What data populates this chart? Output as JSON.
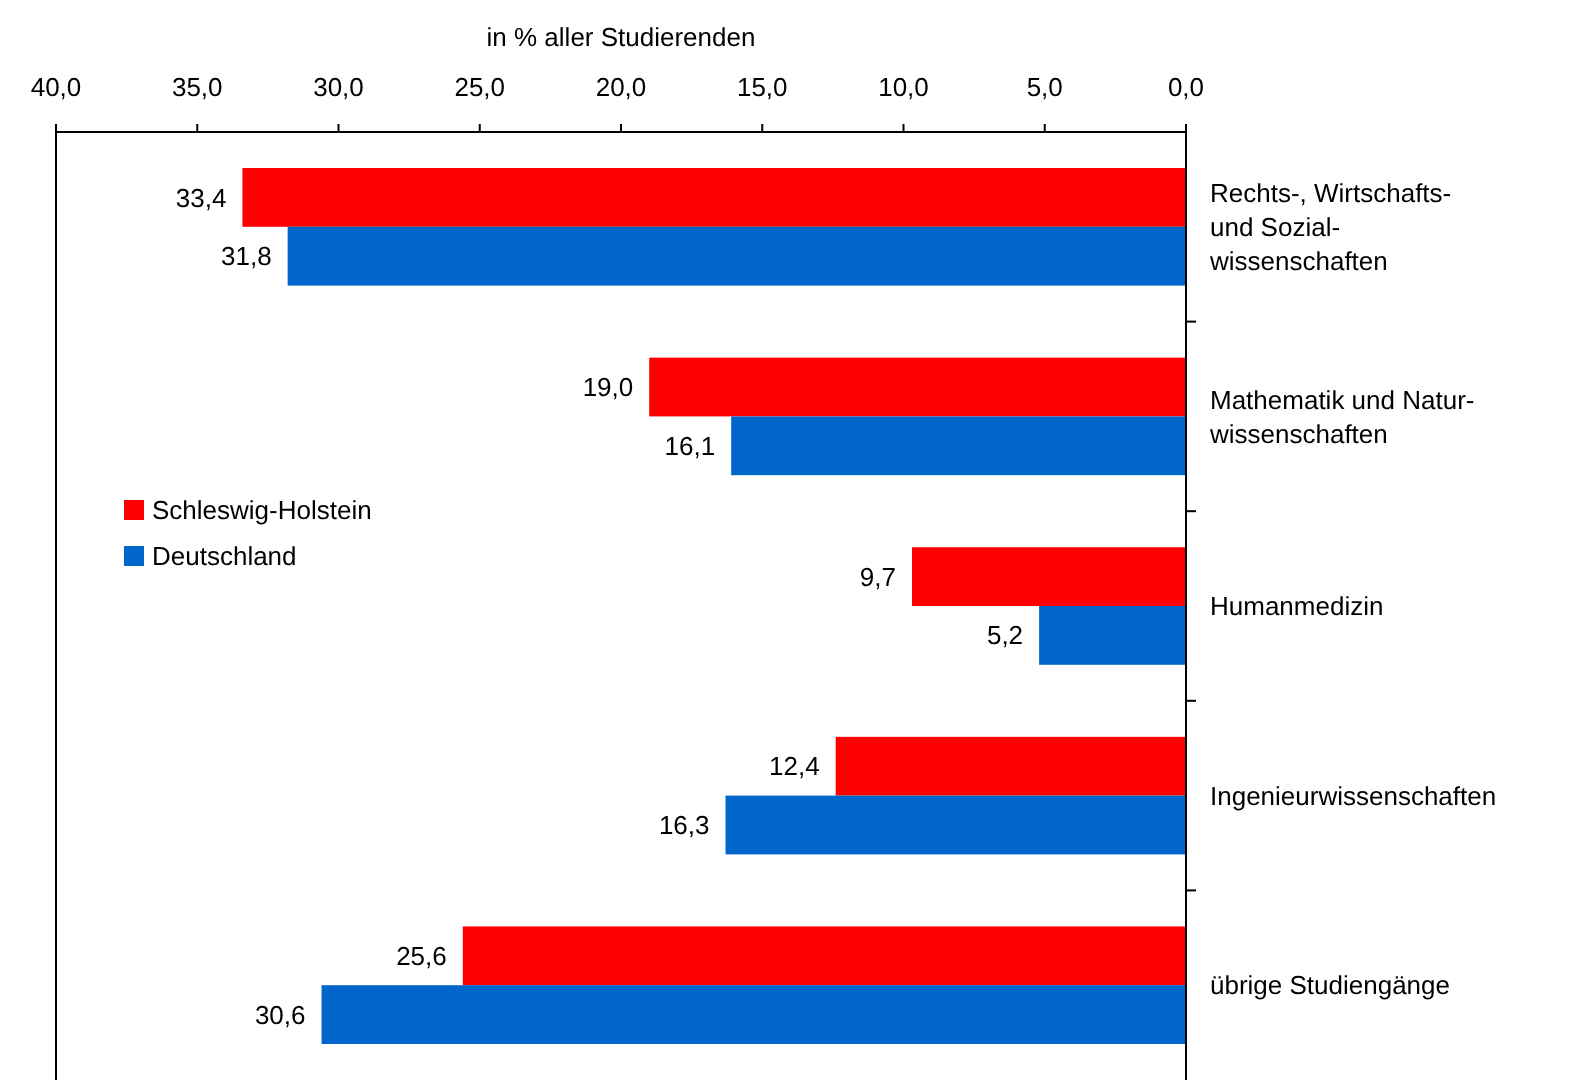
{
  "chart_data": {
    "type": "bar",
    "orientation": "horizontal",
    "xlabel": "in % aller Studierenden",
    "categories": [
      "Rechts-, Wirtschafts-\nund Sozial-\nwissenschaften",
      "Mathematik und Natur-\nwissenschaften",
      "Humanmedizin",
      "Ingenieurwissenschaften",
      "übrige Studiengänge"
    ],
    "series": [
      {
        "name": "Schleswig-Holstein",
        "color": "#ff0000",
        "values": [
          33.4,
          19.0,
          9.7,
          12.4,
          25.6
        ],
        "value_labels": [
          "33,4",
          "19,0",
          "9,7",
          "12,4",
          "25,6"
        ]
      },
      {
        "name": "Deutschland",
        "color": "#0066cc",
        "values": [
          31.8,
          16.1,
          5.2,
          16.3,
          30.6
        ],
        "value_labels": [
          "31,8",
          "16,1",
          "5,2",
          "16,3",
          "30,6"
        ]
      }
    ],
    "xlim": [
      40,
      0
    ],
    "xticks": [
      {
        "value": 40,
        "label": "40,0"
      },
      {
        "value": 35,
        "label": "35,0"
      },
      {
        "value": 30,
        "label": "30,0"
      },
      {
        "value": 25,
        "label": "25,0"
      },
      {
        "value": 20,
        "label": "20,0"
      },
      {
        "value": 15,
        "label": "15,0"
      },
      {
        "value": 10,
        "label": "10,0"
      },
      {
        "value": 5,
        "label": "5,0"
      },
      {
        "value": 0,
        "label": "0,0"
      }
    ],
    "grid": false,
    "legend": "left"
  }
}
